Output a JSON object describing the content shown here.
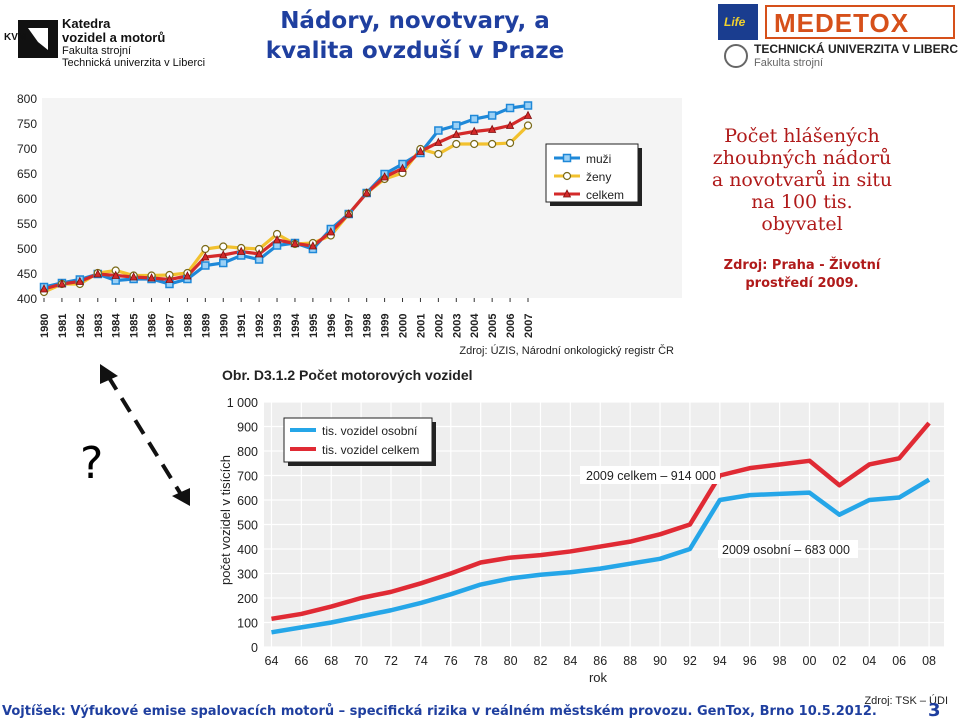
{
  "header": {
    "kvm_abbr": "KVM",
    "dept_line1": "Katedra",
    "dept_line2": "vozidel a motorů",
    "faculty": "Fakulta strojní",
    "university": "Technická univerzita v Liberci",
    "title_line1": "Nádory, novotvary, a",
    "title_line2": "kvalita ovzduší v Praze",
    "life_text": "Life",
    "medetox_text": "MEDETOX",
    "tul_text": "TECHNICKÁ UNIVERZITA V LIBERCI",
    "tul_faculty": "Fakulta strojní"
  },
  "annotation": {
    "line1": "Počet hlášených",
    "line2": "zhoubných nádorů",
    "line3": "a novotvarů in situ",
    "line4": "na 100 tis.",
    "line5": "obyvatel",
    "source_line1": "Zdroj: Praha - Životní",
    "source_line2": "prostředí 2009."
  },
  "question_mark": "?",
  "footer": {
    "text": "Vojtíšek: Výfukové emise spalovacích motorů – specifická rizika v reálném městském provozu. GenTox, Brno 10.5.2012.",
    "page": "3"
  },
  "colors": {
    "muzi": "#1e88d8",
    "zeny": "#f2c12e",
    "celkem": "#d42a2a",
    "osobni": "#25a6e8",
    "celkem_vozidel": "#e02a34",
    "title": "#1f3f9f",
    "annotation": "#b01a1a"
  },
  "chart_data": [
    {
      "type": "line",
      "x": [
        1980,
        1981,
        1982,
        1983,
        1984,
        1985,
        1986,
        1987,
        1988,
        1989,
        1990,
        1991,
        1992,
        1993,
        1994,
        1995,
        1996,
        1997,
        1998,
        1999,
        2000,
        2001,
        2002,
        2003,
        2004,
        2005,
        2006,
        2007
      ],
      "x_tick_labels": [
        "1980",
        "1981",
        "1982",
        "1983",
        "1984",
        "1985",
        "1986",
        "1987",
        "1988",
        "1989",
        "1990",
        "1991",
        "1992",
        "1993",
        "1994",
        "1995",
        "1996",
        "1997",
        "1998",
        "1999",
        "2000",
        "2001",
        "2002",
        "2003",
        "2004",
        "2005",
        "2006",
        "2007"
      ],
      "y_ticks": [
        400,
        450,
        500,
        550,
        600,
        650,
        700,
        750,
        800
      ],
      "ylim": [
        400,
        800
      ],
      "legend_position": "top-right",
      "grid": false,
      "source": "Zdroj: ÚZIS, Národní onkologický registr ČR",
      "series": [
        {
          "name": "muži",
          "marker": "square",
          "values": [
            422,
            430,
            437,
            448,
            435,
            438,
            438,
            428,
            438,
            465,
            470,
            485,
            477,
            505,
            510,
            498,
            538,
            568,
            610,
            648,
            668,
            690,
            735,
            745,
            758,
            765,
            780,
            785
          ]
        },
        {
          "name": "ženy",
          "marker": "circle",
          "values": [
            412,
            428,
            428,
            450,
            455,
            445,
            445,
            446,
            450,
            498,
            503,
            500,
            498,
            528,
            508,
            510,
            525,
            568,
            610,
            638,
            650,
            698,
            688,
            708,
            708,
            708,
            710,
            745
          ]
        },
        {
          "name": "celkem",
          "marker": "triangle",
          "values": [
            418,
            428,
            433,
            448,
            445,
            442,
            440,
            437,
            444,
            482,
            486,
            493,
            488,
            516,
            509,
            504,
            532,
            568,
            610,
            642,
            659,
            693,
            711,
            727,
            733,
            737,
            745,
            765
          ]
        }
      ]
    },
    {
      "type": "line",
      "title": "Obr. D3.1.2  Počet motorových vozidel",
      "xlabel": "rok",
      "ylabel": "počet vozidel v tisících",
      "x": [
        1964,
        1966,
        1968,
        1970,
        1972,
        1974,
        1976,
        1978,
        1980,
        1982,
        1984,
        1986,
        1988,
        1990,
        1992,
        1994,
        1996,
        1998,
        2000,
        2002,
        2004,
        2006,
        2008
      ],
      "x_tick_labels": [
        "64",
        "66",
        "68",
        "70",
        "72",
        "74",
        "76",
        "78",
        "80",
        "82",
        "84",
        "86",
        "88",
        "90",
        "92",
        "94",
        "96",
        "98",
        "00",
        "02",
        "04",
        "06",
        "08"
      ],
      "y_ticks": [
        0,
        100,
        200,
        300,
        400,
        500,
        600,
        700,
        800,
        900,
        1000
      ],
      "y_tick_labels": [
        "0",
        "100",
        "200",
        "300",
        "400",
        "500",
        "600",
        "700",
        "800",
        "900",
        "1 000"
      ],
      "ylim": [
        0,
        1000
      ],
      "legend_position": "top-left",
      "grid": true,
      "source": "Zdroj: TSK – ÚDI",
      "annotations": [
        "2009 celkem – 914 000",
        "2009 osobní – 683 000"
      ],
      "series": [
        {
          "name": "tis. vozidel osobní",
          "values": [
            60,
            80,
            100,
            125,
            150,
            180,
            215,
            255,
            280,
            295,
            305,
            320,
            340,
            360,
            400,
            600,
            620,
            625,
            630,
            540,
            600,
            610,
            683
          ]
        },
        {
          "name": "tis. vozidel celkem",
          "values": [
            115,
            135,
            165,
            200,
            225,
            260,
            300,
            345,
            365,
            375,
            390,
            410,
            430,
            460,
            500,
            700,
            730,
            745,
            760,
            660,
            745,
            770,
            914
          ]
        }
      ]
    }
  ]
}
